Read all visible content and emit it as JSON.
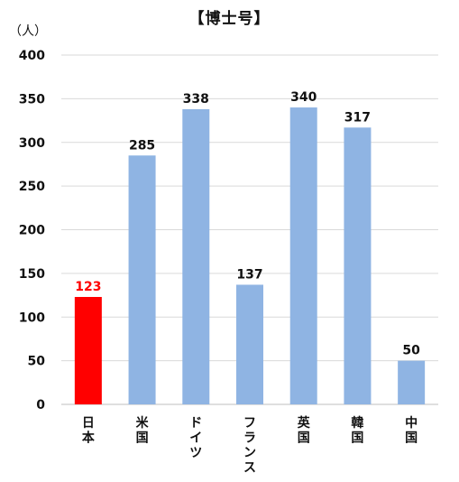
{
  "chart_data": {
    "type": "bar",
    "title": "【博士号】",
    "unit_label": "（人）",
    "categories": [
      "日本",
      "米国",
      "ドイツ",
      "フランス",
      "英国",
      "韓国",
      "中国"
    ],
    "values": [
      123,
      285,
      338,
      137,
      340,
      317,
      50
    ],
    "value_labels": [
      "123",
      "285",
      "338",
      "137",
      "340",
      "317",
      "50"
    ],
    "yticks": [
      "0",
      "50",
      "100",
      "150",
      "200",
      "250",
      "300",
      "350",
      "400"
    ],
    "ylim": [
      0,
      400
    ],
    "grid": true,
    "highlight_category": "日本",
    "colors": {
      "default_bar": "#8FB4E3",
      "highlight_bar": "#FF0000",
      "highlight_label": "#FF0000",
      "label": "#111111",
      "grid": "#D9D9D9",
      "axis": "#BFBFBF"
    }
  }
}
